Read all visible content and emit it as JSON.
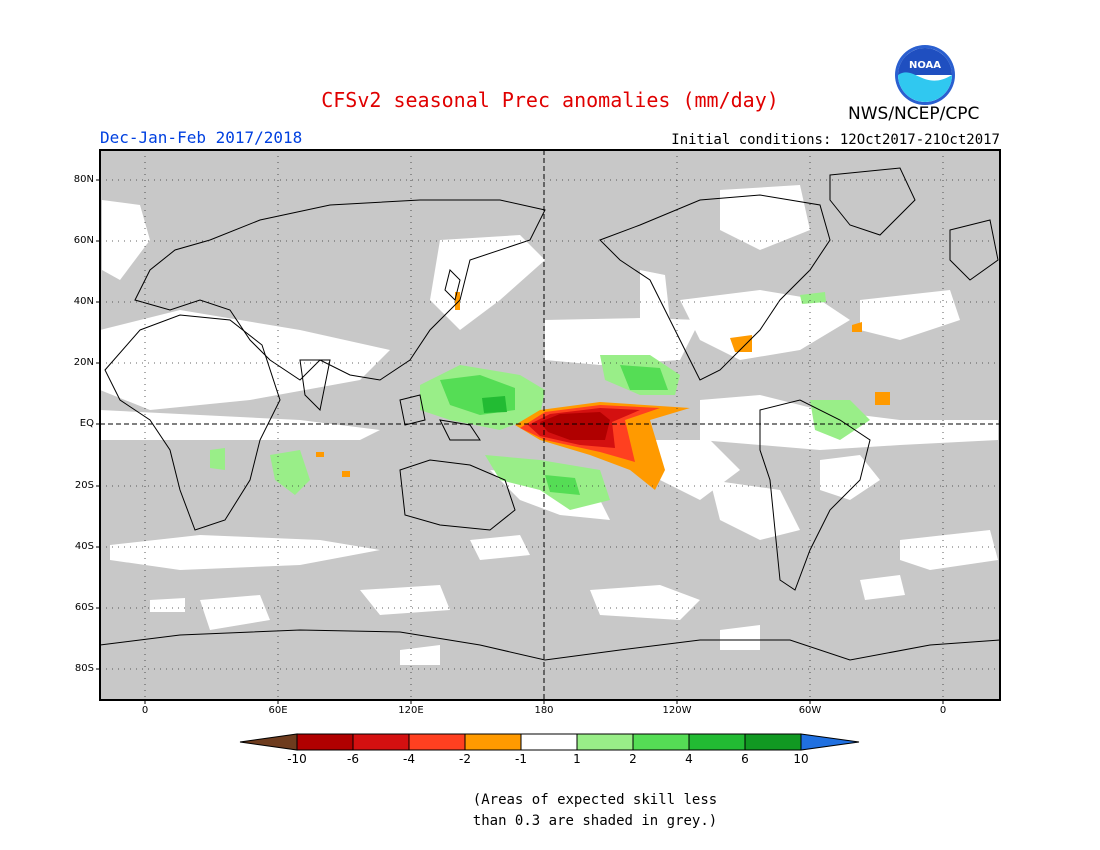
{
  "title": "CFSv2 seasonal Prec anomalies (mm/day)",
  "period": "Dec-Jan-Feb 2017/2018",
  "initial_conditions": "Initial conditions: 12Oct2017-21Oct2017",
  "agency": "NWS/NCEP/CPC",
  "logo_text": "NOAA",
  "lat_labels": [
    "80N",
    "60N",
    "40N",
    "20N",
    "EQ",
    "20S",
    "40S",
    "60S",
    "80S"
  ],
  "lon_labels": [
    "0",
    "60E",
    "120E",
    "180",
    "120W",
    "60W",
    "0"
  ],
  "colorbar": {
    "labels": [
      "-10",
      "-6",
      "-4",
      "-2",
      "-1",
      "1",
      "2",
      "4",
      "6",
      "10"
    ],
    "colors": [
      "#6e3c1e",
      "#b00000",
      "#d41010",
      "#ff4020",
      "#ff9a00",
      "#ffffff",
      "#99ee88",
      "#55dd55",
      "#22bb33",
      "#119922",
      "#2070e0"
    ]
  },
  "colors": {
    "skill_mask": "#c8c8c8",
    "title": "#e00000",
    "period": "#0040e0"
  },
  "note_line1": "(Areas of expected skill less",
  "note_line2": "than 0.3 are shaded in grey.)"
}
